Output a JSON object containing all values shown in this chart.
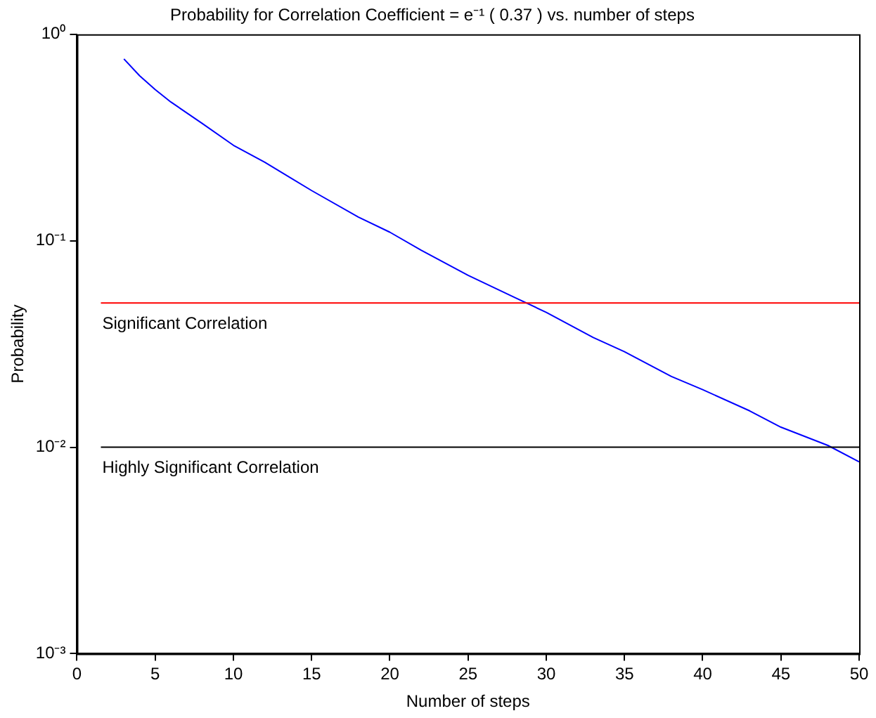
{
  "chart_data": {
    "type": "line",
    "title": "Probability for Correlation Coefficient = e⁻¹ ( 0.37 ) vs. number of steps",
    "xlabel": "Number of steps",
    "ylabel": "Probability",
    "x": [
      3,
      4,
      5,
      6,
      8,
      10,
      12,
      15,
      18,
      20,
      22,
      25,
      28,
      30,
      33,
      35,
      38,
      40,
      43,
      45,
      48,
      50
    ],
    "series": [
      {
        "color": "#0000ff",
        "values": [
          0.76,
          0.63,
          0.54,
          0.47,
          0.37,
          0.29,
          0.24,
          0.175,
          0.13,
          0.11,
          0.09,
          0.068,
          0.053,
          0.045,
          0.034,
          0.029,
          0.022,
          0.019,
          0.015,
          0.0125,
          0.0102,
          0.0085
        ]
      }
    ],
    "xlim": [
      0,
      50
    ],
    "xticks": [
      0,
      5,
      10,
      15,
      20,
      25,
      30,
      35,
      40,
      45,
      50
    ],
    "ylim": [
      0.001,
      1
    ],
    "yticks": [
      {
        "value": 1,
        "label": "10⁰"
      },
      {
        "value": 0.1,
        "label": "10⁻¹"
      },
      {
        "value": 0.01,
        "label": "10⁻²"
      },
      {
        "value": 0.001,
        "label": "10⁻³"
      }
    ],
    "log": "y",
    "grid": false,
    "marker": "none",
    "line_style": "solid",
    "ref_lines": [
      {
        "axis": "y",
        "value": 0.05,
        "label": "Significant Correlation",
        "color": "#ff0000"
      },
      {
        "axis": "y",
        "value": 0.01,
        "label": "Highly Significant Correlation",
        "color": "#000000"
      }
    ]
  }
}
